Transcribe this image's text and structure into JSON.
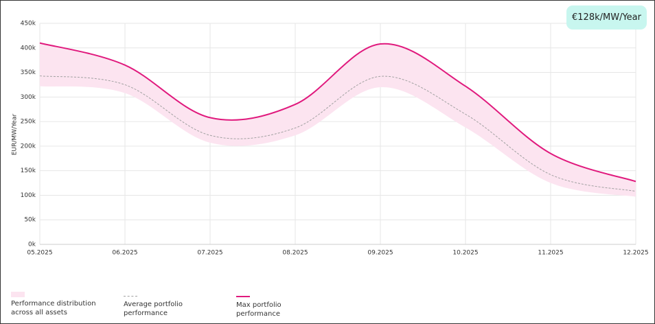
{
  "badge": "€128k/MW/Year",
  "chart_data": {
    "type": "line",
    "ylabel": "EUR/MW/Year",
    "categories": [
      "05.2025",
      "06.2025",
      "07.2025",
      "08.2025",
      "09.2025",
      "10.2025",
      "11.2025",
      "12.2025"
    ],
    "ylim": [
      0,
      450000
    ],
    "yticks": [
      {
        "value": 0,
        "label": "0k"
      },
      {
        "value": 50000,
        "label": "50k"
      },
      {
        "value": 100000,
        "label": "100k"
      },
      {
        "value": 150000,
        "label": "150k"
      },
      {
        "value": 200000,
        "label": "200k"
      },
      {
        "value": 250000,
        "label": "250k"
      },
      {
        "value": 300000,
        "label": "300k"
      },
      {
        "value": 350000,
        "label": "350k"
      },
      {
        "value": 400000,
        "label": "400k"
      },
      {
        "value": 450000,
        "label": "450k"
      }
    ],
    "grid": true,
    "series": [
      {
        "name": "Performance distribution across all assets",
        "color": "#fce4f0",
        "style": "band",
        "values": [
          322000,
          308000,
          207000,
          222000,
          320000,
          238000,
          125000,
          97000
        ]
      },
      {
        "name": "Average portfolio performance",
        "color": "#a0a0a0",
        "style": "dashed",
        "values": [
          343000,
          325000,
          222000,
          237000,
          342000,
          265000,
          142000,
          108000
        ]
      },
      {
        "name": "Max portfolio performance",
        "color": "#e0197d",
        "style": "solid",
        "values": [
          410000,
          365000,
          258000,
          285000,
          408000,
          322000,
          185000,
          128000
        ]
      }
    ]
  }
}
